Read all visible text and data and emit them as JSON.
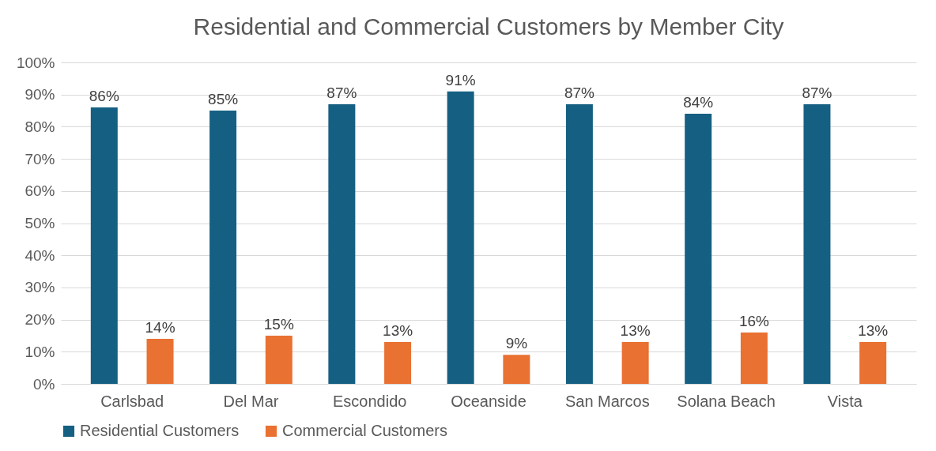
{
  "chart_data": {
    "type": "bar",
    "title": "Residential and Commercial Customers by Member City",
    "categories": [
      "Carlsbad",
      "Del Mar",
      "Escondido",
      "Oceanside",
      "San Marcos",
      "Solana Beach",
      "Vista"
    ],
    "series": [
      {
        "name": "Residential Customers",
        "color": "#156082",
        "values": [
          86,
          85,
          87,
          91,
          87,
          84,
          87
        ],
        "value_labels": [
          "86%",
          "85%",
          "87%",
          "91%",
          "87%",
          "84%",
          "87%"
        ]
      },
      {
        "name": "Commercial Customers",
        "color": "#e97132",
        "values": [
          14,
          15,
          13,
          9,
          13,
          16,
          13
        ],
        "value_labels": [
          "14%",
          "15%",
          "13%",
          "9%",
          "13%",
          "16%",
          "13%"
        ]
      }
    ],
    "ylim": [
      0,
      100
    ],
    "yticks": [
      {
        "value": 0,
        "label": "0%"
      },
      {
        "value": 10,
        "label": "10%"
      },
      {
        "value": 20,
        "label": "20%"
      },
      {
        "value": 30,
        "label": "30%"
      },
      {
        "value": 40,
        "label": "40%"
      },
      {
        "value": 50,
        "label": "50%"
      },
      {
        "value": 60,
        "label": "60%"
      },
      {
        "value": 70,
        "label": "70%"
      },
      {
        "value": 80,
        "label": "80%"
      },
      {
        "value": 90,
        "label": "90%"
      },
      {
        "value": 100,
        "label": "100%"
      }
    ],
    "grid": "y",
    "legend": "bottom"
  }
}
